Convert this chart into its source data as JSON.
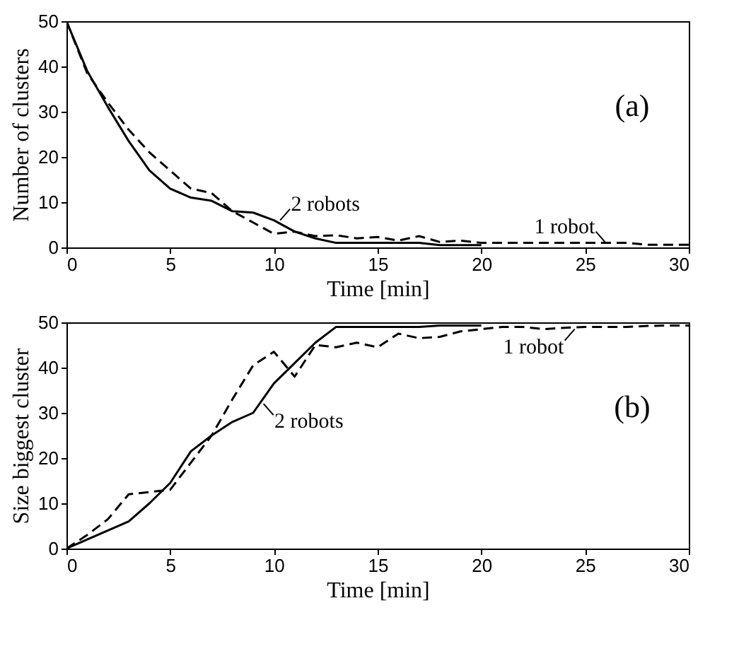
{
  "chart_data": [
    {
      "type": "line",
      "xlabel": "Time [min]",
      "ylabel": "Number of clusters",
      "xlim": [
        0,
        30
      ],
      "xticks": [
        0,
        5,
        10,
        15,
        20,
        25,
        30
      ],
      "ylim": [
        0,
        50
      ],
      "yticks": [
        0,
        10,
        20,
        30,
        40,
        50
      ],
      "grid": false,
      "series": [
        {
          "color": "#000000",
          "line_style": "solid",
          "x": [
            0,
            1,
            2,
            3,
            4,
            5,
            6,
            7,
            8,
            9,
            10,
            11,
            12,
            13,
            14,
            15,
            16,
            17,
            18,
            19,
            20
          ],
          "values": [
            50,
            39,
            31,
            23.5,
            17,
            13,
            11,
            10.3,
            8,
            7.7,
            6,
            3.5,
            2,
            1,
            1,
            1,
            1,
            1,
            0.5,
            0.5,
            0.5
          ]
        },
        {
          "color": "#000000",
          "line_style": "dashed",
          "x": [
            0,
            1,
            2,
            3,
            4,
            5,
            6,
            7,
            8,
            9,
            10,
            11,
            12,
            13,
            14,
            15,
            16,
            17,
            18,
            19,
            20,
            21,
            22,
            23,
            24,
            25,
            26,
            27,
            28,
            29,
            30
          ],
          "values": [
            50,
            38.5,
            32,
            26,
            21,
            17,
            13,
            12,
            8,
            5.5,
            3,
            3.5,
            2.5,
            2.7,
            2,
            2.3,
            1.5,
            2.5,
            1.2,
            1.5,
            1,
            1,
            1,
            1,
            1,
            1,
            1,
            1,
            0.6,
            0.6,
            0.6
          ]
        }
      ],
      "annotations": [
        {
          "text": "2 robots",
          "x": 10.3,
          "y": 6
        },
        {
          "text": "1 robot",
          "x": 26,
          "y": 1
        },
        "(a)"
      ]
    },
    {
      "type": "line",
      "xlabel": "Time [min]",
      "ylabel": "Size biggest cluster",
      "xlim": [
        0,
        30
      ],
      "xticks": [
        0,
        5,
        10,
        15,
        20,
        25,
        30
      ],
      "ylim": [
        0,
        50
      ],
      "yticks": [
        0,
        10,
        20,
        30,
        40,
        50
      ],
      "grid": false,
      "series": [
        {
          "color": "#000000",
          "line_style": "solid",
          "x": [
            0,
            1,
            2,
            3,
            4,
            5,
            6,
            7,
            8,
            9,
            10,
            11,
            12,
            13,
            14,
            15,
            16,
            17,
            18,
            19,
            20
          ],
          "values": [
            0,
            2,
            4,
            6,
            10,
            14.5,
            21.5,
            25,
            28,
            30,
            36.5,
            41,
            45.5,
            49,
            49,
            49,
            49,
            49,
            49.3,
            49.3,
            49.3
          ]
        },
        {
          "color": "#000000",
          "line_style": "dashed",
          "x": [
            0,
            1,
            2,
            3,
            4,
            5,
            6,
            7,
            8,
            9,
            10,
            11,
            12,
            13,
            14,
            15,
            16,
            17,
            18,
            19,
            20,
            21,
            22,
            23,
            24,
            25,
            26,
            27,
            28,
            29,
            30
          ],
          "values": [
            0,
            3,
            6.5,
            12,
            12.5,
            13,
            19,
            25,
            33,
            40.5,
            43.5,
            38,
            45,
            44.5,
            45.5,
            44.5,
            47.5,
            46.5,
            46.8,
            48,
            48.5,
            49,
            49,
            48.5,
            48.8,
            49,
            49,
            49,
            49.2,
            49.3,
            49.3
          ]
        }
      ],
      "annotations": [
        {
          "text": "2 robots",
          "x": 9.5,
          "y": 32
        },
        {
          "text": "1 robot",
          "x": 24.5,
          "y": 48.5
        },
        "(b)"
      ]
    }
  ]
}
